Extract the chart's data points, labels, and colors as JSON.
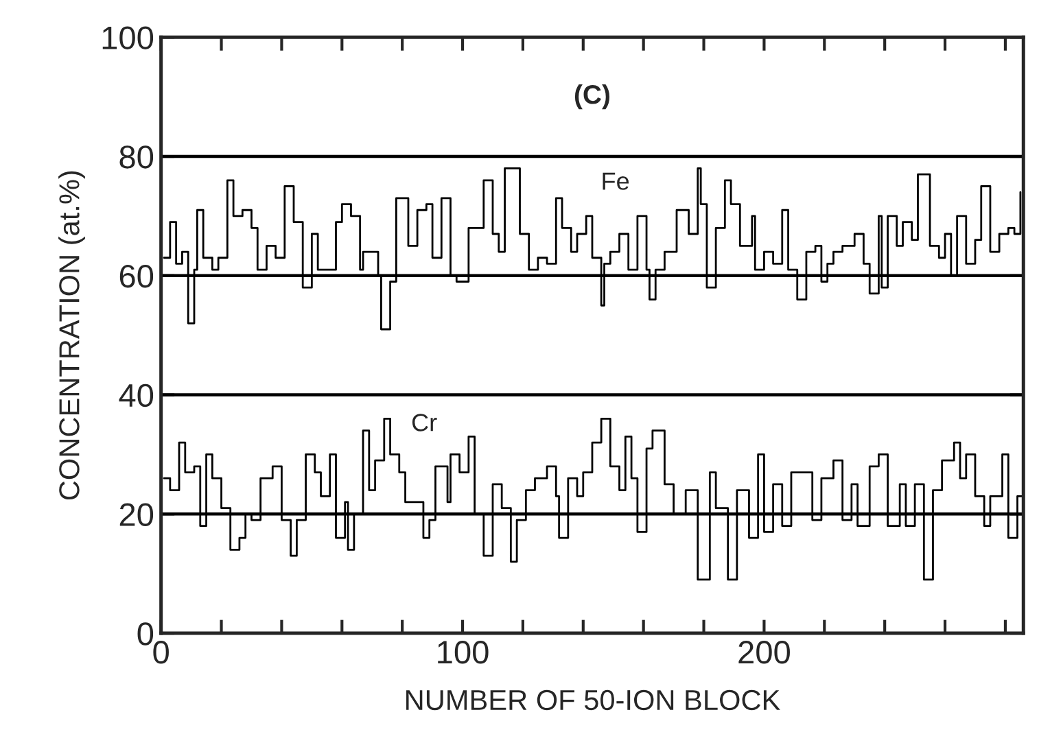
{
  "chart_data": {
    "type": "step",
    "xlabel": "NUMBER OF 50-ION BLOCK",
    "ylabel": "CONCENTRATION (at.%)",
    "annotations": [
      "(C)"
    ],
    "xlim": [
      0,
      286
    ],
    "ylim": [
      0,
      100
    ],
    "xticks": [
      0,
      {
        "value": 20,
        "label": null
      },
      {
        "value": 40,
        "label": null
      },
      {
        "value": 60,
        "label": null
      },
      {
        "value": 80,
        "label": null
      },
      100,
      {
        "value": 120,
        "label": null
      },
      {
        "value": 140,
        "label": null
      },
      {
        "value": 160,
        "label": null
      },
      {
        "value": 180,
        "label": null
      },
      200,
      {
        "value": 220,
        "label": null
      },
      {
        "value": 240,
        "label": null
      },
      {
        "value": 260,
        "label": null
      },
      {
        "value": 280,
        "label": null
      }
    ],
    "yticks": [
      0,
      20,
      40,
      60,
      80,
      100
    ],
    "grid": false,
    "legend": false,
    "marker": "none",
    "line_style": "solid",
    "ref_lines": [
      {
        "axis": "y",
        "value": 20,
        "color": "#000000"
      },
      {
        "axis": "y",
        "value": 40,
        "color": "#000000"
      },
      {
        "axis": "y",
        "value": 60,
        "color": "#000000"
      },
      {
        "axis": "y",
        "value": 80,
        "color": "#000000"
      }
    ],
    "series": [
      {
        "name": "Fe",
        "color": "#000000",
        "x": [
          1,
          3,
          5,
          7,
          9,
          11,
          12,
          14,
          17,
          19,
          22,
          24,
          27,
          30,
          32,
          35,
          38,
          41,
          44,
          47,
          50,
          52,
          55,
          58,
          60,
          63,
          66,
          67,
          72,
          73,
          76,
          78,
          82,
          85,
          88,
          90,
          93,
          96,
          98,
          102,
          107,
          110,
          112,
          114,
          116,
          119,
          122,
          125,
          128,
          131,
          133,
          136,
          138,
          141,
          143,
          146,
          147,
          149,
          152,
          155,
          158,
          161,
          162,
          164,
          167,
          171,
          175,
          178,
          179,
          181,
          184,
          187,
          189,
          192,
          196,
          197,
          200,
          203,
          206,
          208,
          211,
          214,
          217,
          219,
          221,
          223,
          226,
          230,
          233,
          235,
          238,
          239,
          241,
          244,
          246,
          249,
          251,
          255,
          258,
          260,
          262,
          264,
          267,
          270,
          272,
          275,
          278,
          281,
          283,
          285
        ],
        "values": [
          63,
          69,
          62,
          64,
          52,
          61,
          71,
          63,
          61,
          63,
          76,
          70,
          71,
          68,
          61,
          65,
          63,
          75,
          69,
          58,
          67,
          61,
          61,
          69,
          72,
          70,
          61,
          64,
          60,
          51,
          59,
          73,
          65,
          71,
          72,
          63,
          73,
          60,
          59,
          68,
          76,
          67,
          64,
          78,
          78,
          67,
          61,
          63,
          62,
          73,
          68,
          64,
          67,
          70,
          63,
          55,
          62,
          64,
          67,
          61,
          70,
          61,
          56,
          61,
          64,
          71,
          67,
          78,
          72,
          58,
          68,
          76,
          72,
          65,
          70,
          61,
          64,
          62,
          71,
          61,
          56,
          64,
          65,
          59,
          62,
          64,
          65,
          67,
          62,
          57,
          70,
          58,
          70,
          65,
          69,
          66,
          77,
          65,
          63,
          67,
          60,
          70,
          62,
          66,
          75,
          64,
          67,
          68,
          67,
          74
        ]
      },
      {
        "name": "Cr",
        "color": "#000000",
        "x": [
          1,
          3,
          6,
          8,
          11,
          13,
          15,
          17,
          20,
          23,
          26,
          28,
          30,
          33,
          37,
          40,
          43,
          45,
          48,
          51,
          53,
          56,
          58,
          61,
          62,
          64,
          67,
          69,
          71,
          74,
          76,
          79,
          81,
          84,
          87,
          89,
          91,
          95,
          96,
          99,
          102,
          104,
          107,
          110,
          113,
          116,
          118,
          121,
          124,
          128,
          131,
          132,
          135,
          138,
          140,
          143,
          146,
          149,
          152,
          154,
          156,
          158,
          161,
          163,
          167,
          170,
          174,
          178,
          182,
          184,
          188,
          191,
          195,
          198,
          200,
          203,
          206,
          209,
          213,
          216,
          219,
          223,
          226,
          229,
          231,
          235,
          238,
          241,
          245,
          247,
          250,
          253,
          256,
          259,
          263,
          265,
          267,
          270,
          273,
          275,
          279,
          281,
          284,
          286
        ],
        "values": [
          26,
          24,
          32,
          27,
          28,
          18,
          30,
          26,
          21,
          14,
          16,
          20,
          19,
          26,
          28,
          19,
          13,
          19,
          30,
          27,
          23,
          30,
          16,
          22,
          14,
          20,
          34,
          24,
          29,
          36,
          30,
          27,
          22,
          22,
          16,
          19,
          28,
          22,
          30,
          27,
          33,
          20,
          13,
          25,
          21,
          12,
          19,
          24,
          26,
          28,
          23,
          16,
          26,
          23,
          27,
          32,
          36,
          28,
          24,
          33,
          26,
          17,
          31,
          34,
          25,
          20,
          24,
          9,
          27,
          21,
          9,
          24,
          16,
          30,
          17,
          25,
          18,
          27,
          27,
          19,
          26,
          29,
          19,
          25,
          18,
          28,
          30,
          18,
          25,
          18,
          25,
          9,
          24,
          29,
          32,
          26,
          30,
          23,
          18,
          23,
          30,
          16,
          23,
          20
        ]
      }
    ]
  }
}
